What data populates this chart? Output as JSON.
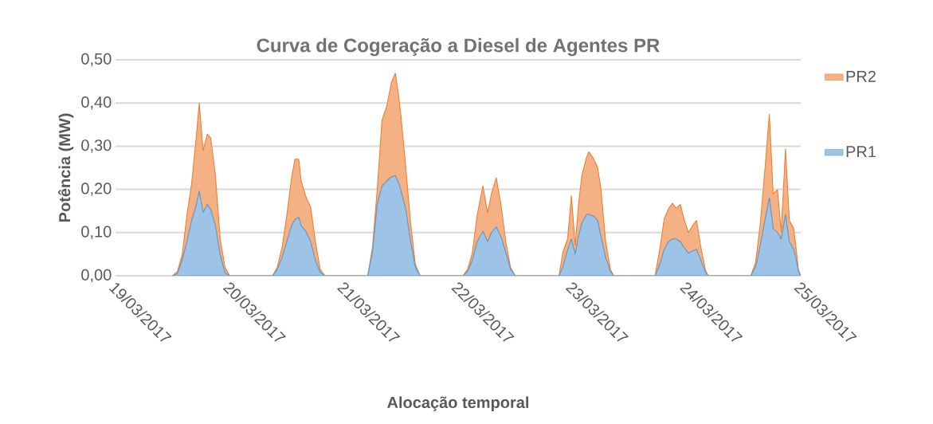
{
  "chart_data": {
    "type": "area",
    "title": "Curva de Cogeração a Diesel de Agentes PR",
    "xlabel": "Alocação temporal",
    "ylabel": "Potência (MW)",
    "stacked": true,
    "grid": "y",
    "legend": "right",
    "marker": "none",
    "x": [
      "2017-03-19T12:00",
      "2017-03-19T13:00",
      "2017-03-19T14:00",
      "2017-03-19T15:00",
      "2017-03-19T16:00",
      "2017-03-19T17:00",
      "2017-03-19T17:36",
      "2017-03-19T18:24",
      "2017-03-19T19:18",
      "2017-03-19T20:00",
      "2017-03-19T21:00",
      "2017-03-19T22:00",
      "2017-03-19T23:00",
      "2017-03-20T00:00",
      "2017-03-20T09:00",
      "2017-03-20T10:00",
      "2017-03-20T11:00",
      "2017-03-20T12:00",
      "2017-03-20T13:00",
      "2017-03-20T13:42",
      "2017-03-20T14:30",
      "2017-03-20T15:00",
      "2017-03-20T16:00",
      "2017-03-20T17:00",
      "2017-03-20T18:00",
      "2017-03-20T19:00",
      "2017-03-20T20:00",
      "2017-03-21T05:00",
      "2017-03-21T06:00",
      "2017-03-21T07:00",
      "2017-03-21T08:00",
      "2017-03-21T09:00",
      "2017-03-21T10:00",
      "2017-03-21T10:48",
      "2017-03-21T11:30",
      "2017-03-21T12:00",
      "2017-03-21T13:00",
      "2017-03-21T14:00",
      "2017-03-21T15:00",
      "2017-03-21T16:00",
      "2017-03-22T01:00",
      "2017-03-22T02:00",
      "2017-03-22T03:00",
      "2017-03-22T04:00",
      "2017-03-22T05:12",
      "2017-03-22T06:12",
      "2017-03-22T07:00",
      "2017-03-22T08:00",
      "2017-03-22T09:00",
      "2017-03-22T10:00",
      "2017-03-22T11:00",
      "2017-03-22T12:00",
      "2017-03-22T21:12",
      "2017-03-22T22:00",
      "2017-03-22T23:00",
      "2017-03-22T23:48",
      "2017-03-23T00:36",
      "2017-03-23T01:18",
      "2017-03-23T02:00",
      "2017-03-23T03:00",
      "2017-03-23T03:30",
      "2017-03-23T04:30",
      "2017-03-23T05:18",
      "2017-03-23T06:00",
      "2017-03-23T07:00",
      "2017-03-23T08:00",
      "2017-03-23T08:42",
      "2017-03-23T17:24",
      "2017-03-23T18:30",
      "2017-03-23T19:18",
      "2017-03-23T20:12",
      "2017-03-23T21:00",
      "2017-03-23T21:48",
      "2017-03-23T22:42",
      "2017-03-23T23:30",
      "2017-03-24T00:24",
      "2017-03-24T01:12",
      "2017-03-24T02:06",
      "2017-03-24T03:00",
      "2017-03-24T04:00",
      "2017-03-24T04:36",
      "2017-03-24T13:30",
      "2017-03-24T14:30",
      "2017-03-24T15:30",
      "2017-03-24T16:30",
      "2017-03-24T17:24",
      "2017-03-24T18:12",
      "2017-03-24T19:06",
      "2017-03-24T19:54",
      "2017-03-24T20:48",
      "2017-03-24T21:36",
      "2017-03-24T22:30",
      "2017-03-24T23:00",
      "2017-03-24T23:30",
      "2017-03-25T00:00"
    ],
    "series": [
      {
        "name": "PR1",
        "color": "#5b9bd5",
        "values": [
          0,
          0.005,
          0.036,
          0.079,
          0.128,
          0.165,
          0.196,
          0.146,
          0.165,
          0.153,
          0.116,
          0.048,
          0.007,
          0,
          0,
          0.015,
          0.042,
          0.079,
          0.116,
          0.13,
          0.135,
          0.116,
          0.103,
          0.079,
          0.036,
          0.008,
          0,
          0,
          0.054,
          0.165,
          0.208,
          0.22,
          0.229,
          0.232,
          0.214,
          0.196,
          0.153,
          0.079,
          0.02,
          0,
          0,
          0.01,
          0.036,
          0.079,
          0.103,
          0.079,
          0.1,
          0.113,
          0.091,
          0.054,
          0.015,
          0,
          0,
          0.02,
          0.06,
          0.085,
          0.05,
          0.091,
          0.122,
          0.142,
          0.142,
          0.138,
          0.128,
          0.091,
          0.042,
          0.01,
          0,
          0,
          0.03,
          0.061,
          0.079,
          0.085,
          0.085,
          0.079,
          0.065,
          0.052,
          0.057,
          0.061,
          0.036,
          0.008,
          0,
          0,
          0.02,
          0.07,
          0.13,
          0.181,
          0.109,
          0.1,
          0.085,
          0.142,
          0.079,
          0.061,
          0.04,
          0.01,
          0
        ]
      },
      {
        "name": "PR2",
        "color": "#ed7d31",
        "values": [
          0,
          0.005,
          0.012,
          0.061,
          0.086,
          0.16,
          0.204,
          0.144,
          0.163,
          0.166,
          0.116,
          0.037,
          0.013,
          0,
          0,
          0.005,
          0.024,
          0.061,
          0.111,
          0.14,
          0.135,
          0.104,
          0.08,
          0.08,
          0.043,
          0.007,
          0,
          0,
          0.012,
          0.035,
          0.152,
          0.173,
          0.219,
          0.237,
          0.203,
          0.172,
          0.098,
          0.043,
          0.007,
          0,
          0,
          0.005,
          0.018,
          0.061,
          0.105,
          0.067,
          0.09,
          0.114,
          0.074,
          0.025,
          0.005,
          0,
          0,
          0.034,
          0.025,
          0.101,
          0.02,
          0.074,
          0.11,
          0.133,
          0.145,
          0.132,
          0.123,
          0.111,
          0.037,
          0.005,
          0,
          0,
          0.04,
          0.071,
          0.076,
          0.083,
          0.072,
          0.086,
          0.065,
          0.048,
          0.058,
          0.067,
          0.03,
          0.004,
          0,
          0,
          0.01,
          0.05,
          0.12,
          0.193,
          0.081,
          0.099,
          0.018,
          0.152,
          0.049,
          0.049,
          0.026,
          0.005,
          0
        ]
      }
    ],
    "xlim": [
      "2017-03-19",
      "2017-03-25"
    ],
    "xticks": [
      {
        "value": "2017-03-19",
        "label": "19/03/2017"
      },
      {
        "value": "2017-03-20",
        "label": "20/03/2017"
      },
      {
        "value": "2017-03-21",
        "label": "21/03/2017"
      },
      {
        "value": "2017-03-22",
        "label": "22/03/2017"
      },
      {
        "value": "2017-03-23",
        "label": "23/03/2017"
      },
      {
        "value": "2017-03-24",
        "label": "24/03/2017"
      },
      {
        "value": "2017-03-25",
        "label": "25/03/2017"
      }
    ],
    "ylim": [
      0,
      0.5
    ],
    "yticks": [
      {
        "value": 0,
        "label": "0,00"
      },
      {
        "value": 0.1,
        "label": "0,10"
      },
      {
        "value": 0.2,
        "label": "0,20"
      },
      {
        "value": 0.3,
        "label": "0,30"
      },
      {
        "value": 0.4,
        "label": "0,40"
      },
      {
        "value": 0.5,
        "label": "0,50"
      }
    ]
  }
}
